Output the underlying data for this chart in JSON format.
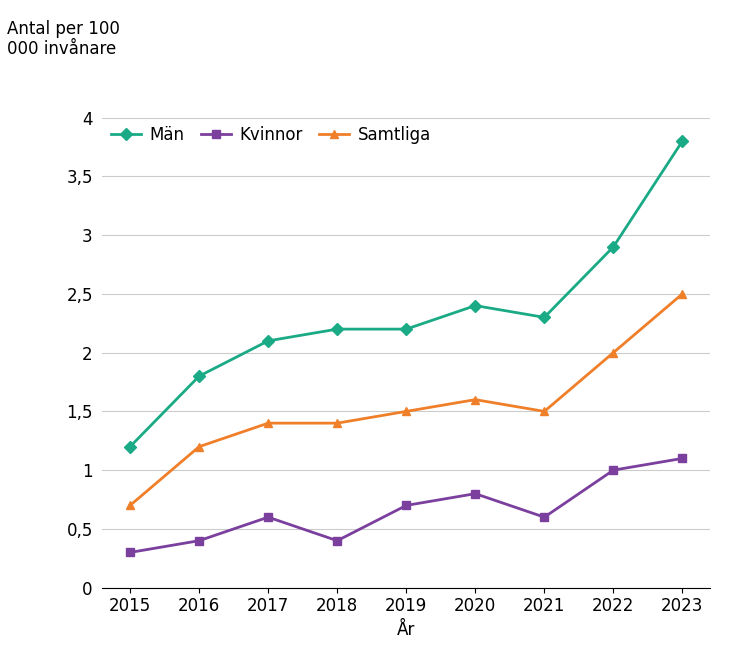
{
  "years": [
    2015,
    2016,
    2017,
    2018,
    2019,
    2020,
    2021,
    2022,
    2023
  ],
  "man": [
    1.2,
    1.8,
    2.1,
    2.2,
    2.2,
    2.4,
    2.3,
    2.9,
    3.8
  ],
  "kvinnor": [
    0.3,
    0.4,
    0.6,
    0.4,
    0.7,
    0.8,
    0.6,
    1.0,
    1.1
  ],
  "samtliga": [
    0.7,
    1.2,
    1.4,
    1.4,
    1.5,
    1.6,
    1.5,
    2.0,
    2.5
  ],
  "man_color": "#1aaa85",
  "kvinnor_color": "#7b3f9e",
  "samtliga_color": "#f07f2a",
  "man_label": "Män",
  "kvinnor_label": "Kvinnor",
  "samtliga_label": "Samtliga",
  "ylabel_text": "Antal per 100\n000 invånare",
  "xlabel": "År",
  "ylim": [
    0,
    4
  ],
  "yticks": [
    0,
    0.5,
    1.0,
    1.5,
    2.0,
    2.5,
    3.0,
    3.5,
    4.0
  ],
  "ytick_labels": [
    "0",
    "0,5",
    "1",
    "1,5",
    "2",
    "2,5",
    "3",
    "3,5",
    "4"
  ],
  "background_color": "#ffffff",
  "grid_color": "#cccccc",
  "marker_size": 6,
  "linewidth": 2.0,
  "font_size": 12
}
